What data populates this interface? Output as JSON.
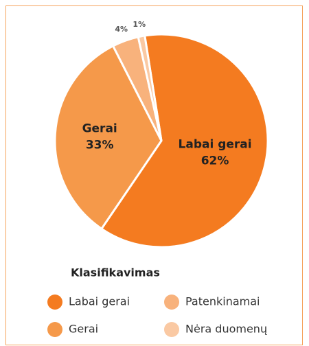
{
  "chart_data": {
    "type": "pie",
    "categories": [
      "Labai gerai",
      "Gerai",
      "Patenkinamai",
      "Nėra duomenų"
    ],
    "values": [
      62,
      33,
      4,
      1
    ],
    "value_labels": [
      "62%",
      "33%",
      "4%",
      "1%"
    ],
    "colors": [
      "#f47b20",
      "#f5994a",
      "#f8b27c",
      "#fac9a3"
    ],
    "legend_title": "Klasifikavimas"
  }
}
